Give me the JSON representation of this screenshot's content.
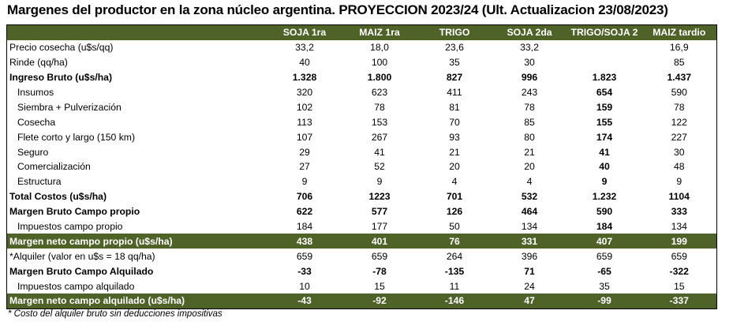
{
  "title": "Margenes del productor en la zona núcleo argentina. PROYECCION 2023/24 (Ult. Actualizacion 23/08/2023)",
  "columns": [
    "",
    "SOJA 1ra",
    "MAIZ 1ra",
    "TRIGO",
    "SOJA 2da",
    "TRIGO/SOJA 2",
    "MAIZ tardio"
  ],
  "rows": [
    {
      "label": "Precio cosecha (u$s/qq)",
      "values": [
        "33,2",
        "18,0",
        "23,6",
        "33,2",
        "",
        "16,9"
      ]
    },
    {
      "label": "Rinde (qq/ha)",
      "values": [
        "40",
        "100",
        "35",
        "30",
        "",
        "85"
      ]
    },
    {
      "label": "Ingreso Bruto (u$s/ha)",
      "values": [
        "1.328",
        "1.800",
        "827",
        "996",
        "1.823",
        "1.437"
      ]
    },
    {
      "label": "Insumos",
      "values": [
        "320",
        "623",
        "411",
        "243",
        "654",
        "590"
      ]
    },
    {
      "label": "Siembra + Pulverización",
      "values": [
        "102",
        "78",
        "81",
        "78",
        "159",
        "78"
      ]
    },
    {
      "label": "Cosecha",
      "values": [
        "113",
        "153",
        "70",
        "85",
        "155",
        "122"
      ]
    },
    {
      "label": "Flete corto y largo (150 km)",
      "values": [
        "107",
        "267",
        "93",
        "80",
        "174",
        "227"
      ]
    },
    {
      "label": "Seguro",
      "values": [
        "29",
        "41",
        "21",
        "21",
        "41",
        "30"
      ]
    },
    {
      "label": "Comercialización",
      "values": [
        "27",
        "52",
        "20",
        "20",
        "40",
        "48"
      ]
    },
    {
      "label": "Estructura",
      "values": [
        "9",
        "9",
        "4",
        "4",
        "9",
        "9"
      ]
    },
    {
      "label": "Total Costos (u$s/ha)",
      "values": [
        "706",
        "1223",
        "701",
        "532",
        "1.232",
        "1104"
      ]
    },
    {
      "label": "Margen Bruto Campo propio",
      "values": [
        "622",
        "577",
        "126",
        "464",
        "590",
        "333"
      ]
    },
    {
      "label": "Impuestos campo propio",
      "values": [
        "184",
        "177",
        "50",
        "134",
        "184",
        "134"
      ]
    },
    {
      "label": "Margen neto campo propio (u$s/ha)",
      "values": [
        "438",
        "401",
        "76",
        "331",
        "407",
        "199"
      ]
    },
    {
      "label": "*Alquiler (valor en u$s = 18 qq/ha)",
      "values": [
        "659",
        "659",
        "264",
        "396",
        "659",
        "659"
      ]
    },
    {
      "label": "Margen Bruto Campo Alquilado",
      "values": [
        "-33",
        "-78",
        "-135",
        "71",
        "-65",
        "-322"
      ]
    },
    {
      "label": "Impuestos campo alquilado",
      "values": [
        "10",
        "15",
        "11",
        "24",
        "35",
        "15"
      ]
    },
    {
      "label": "Margen neto campo alquilado (u$s/ha)",
      "values": [
        "-43",
        "-92",
        "-146",
        "47",
        "-99",
        "-337"
      ]
    }
  ],
  "footnote": "* Costo del alquiler bruto sin deducciones impositivas"
}
